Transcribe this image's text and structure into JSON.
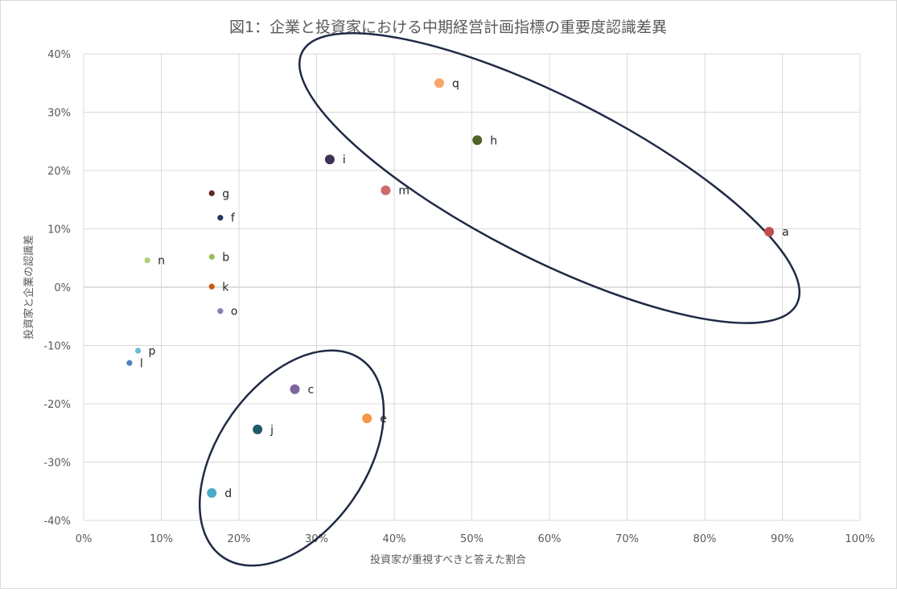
{
  "chart_data": {
    "type": "scatter",
    "title": "図1：企業と投資家における中期経営計画指標の重要度認識差異",
    "xlabel": "投資家が重視すべきと答えた割合",
    "ylabel": "投資家と企業の認識差",
    "xlim": [
      0,
      1
    ],
    "ylim": [
      -0.4,
      0.4
    ],
    "x_ticks": [
      {
        "v": 0,
        "label": "0%"
      },
      {
        "v": 0.1,
        "label": "10%"
      },
      {
        "v": 0.2,
        "label": "20%"
      },
      {
        "v": 0.3,
        "label": "30%"
      },
      {
        "v": 0.4,
        "label": "40%"
      },
      {
        "v": 0.5,
        "label": "50%"
      },
      {
        "v": 0.6,
        "label": "60%"
      },
      {
        "v": 0.7,
        "label": "70%"
      },
      {
        "v": 0.8,
        "label": "80%"
      },
      {
        "v": 0.9,
        "label": "90%"
      },
      {
        "v": 1.0,
        "label": "100%"
      }
    ],
    "y_ticks": [
      {
        "v": 0.4,
        "label": "40%"
      },
      {
        "v": 0.3,
        "label": "30%"
      },
      {
        "v": 0.2,
        "label": "20%"
      },
      {
        "v": 0.1,
        "label": "10%"
      },
      {
        "v": 0,
        "label": "0%"
      },
      {
        "v": -0.1,
        "label": "-10%"
      },
      {
        "v": -0.2,
        "label": "-20%"
      },
      {
        "v": -0.3,
        "label": "-30%"
      },
      {
        "v": -0.4,
        "label": "-40%"
      }
    ],
    "grid": true,
    "points": [
      {
        "label": "a",
        "x": 0.883,
        "y": 0.095,
        "color": "#c0504d",
        "large": true
      },
      {
        "label": "b",
        "x": 0.165,
        "y": 0.052,
        "color": "#9bbb59",
        "large": false
      },
      {
        "label": "c",
        "x": 0.272,
        "y": -0.175,
        "color": "#8064a2",
        "large": true
      },
      {
        "label": "d",
        "x": 0.165,
        "y": -0.353,
        "color": "#4bacc6",
        "large": true
      },
      {
        "label": "e",
        "x": 0.365,
        "y": -0.225,
        "color": "#f79646",
        "large": true
      },
      {
        "label": "f",
        "x": 0.176,
        "y": 0.119,
        "color": "#1f3864",
        "large": false
      },
      {
        "label": "g",
        "x": 0.165,
        "y": 0.161,
        "color": "#632523",
        "large": false
      },
      {
        "label": "h",
        "x": 0.507,
        "y": 0.252,
        "color": "#4f6228",
        "large": true
      },
      {
        "label": "i",
        "x": 0.317,
        "y": 0.219,
        "color": "#3f3151",
        "large": true
      },
      {
        "label": "j",
        "x": 0.224,
        "y": -0.244,
        "color": "#215967",
        "large": true
      },
      {
        "label": "k",
        "x": 0.165,
        "y": 0.001,
        "color": "#c55a11",
        "large": false
      },
      {
        "label": "l",
        "x": 0.059,
        "y": -0.13,
        "color": "#4f81bd",
        "large": false
      },
      {
        "label": "m",
        "x": 0.389,
        "y": 0.166,
        "color": "#d06b6b",
        "large": true
      },
      {
        "label": "n",
        "x": 0.082,
        "y": 0.046,
        "color": "#b3cc7a",
        "large": false
      },
      {
        "label": "o",
        "x": 0.176,
        "y": -0.041,
        "color": "#8e7cb0",
        "large": false
      },
      {
        "label": "p",
        "x": 0.07,
        "y": -0.109,
        "color": "#6fbcd4",
        "large": false
      },
      {
        "label": "q",
        "x": 0.458,
        "y": 0.35,
        "color": "#f9a66c",
        "large": true
      }
    ],
    "annotations": [
      {
        "shape": "ellipse",
        "cx": 0.6,
        "cy": 0.187,
        "rx_px": 345,
        "ry_px": 100,
        "angle": 27
      },
      {
        "shape": "ellipse",
        "cx": 0.268,
        "cy": -0.293,
        "rx_px": 150,
        "ry_px": 92,
        "angle": -55
      }
    ],
    "ellipse_color": "#1f2a44"
  }
}
